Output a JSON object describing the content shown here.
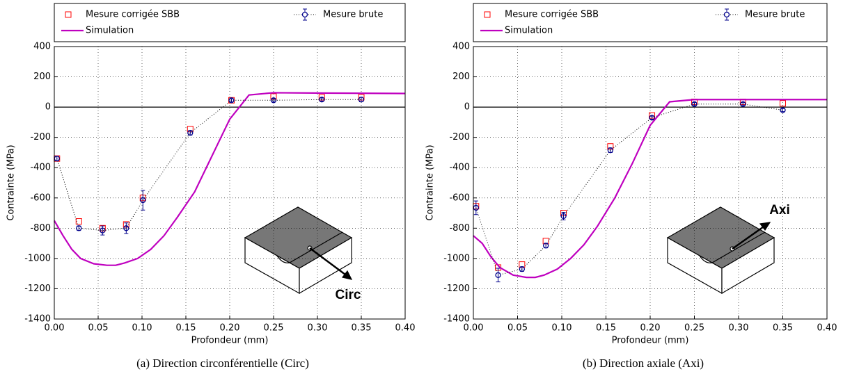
{
  "chart_data": [
    {
      "type": "line",
      "caption": "(a) Direction circonférentielle (Circ)",
      "x_label": "Profondeur (mm)",
      "y_label": "Contrainte (MPa)",
      "annotation": "Circ",
      "xlim": [
        0,
        0.4
      ],
      "ylim": [
        -1400,
        400
      ],
      "grid": true,
      "hline": 0,
      "xticks": [
        {
          "value": 0,
          "label": "0.00"
        },
        0.05,
        {
          "value": 0.1,
          "label": "0.10"
        },
        0.15,
        {
          "value": 0.2,
          "label": "0.20"
        },
        0.25,
        {
          "value": 0.3,
          "label": "0.30"
        },
        0.35,
        {
          "value": 0.4,
          "label": "0.40"
        }
      ],
      "yticks": [
        -1400,
        -1200,
        -1000,
        -800,
        -600,
        -400,
        -200,
        0,
        200,
        400
      ],
      "series": [
        {
          "name": "Mesure corrigée SBB",
          "color": "#ff0000",
          "marker": "square",
          "line": "none",
          "x": [
            0.003,
            0.028,
            0.055,
            0.082,
            0.101,
            0.155,
            0.202,
            0.25,
            0.305,
            0.35
          ],
          "values": [
            -340,
            -755,
            -800,
            -775,
            -600,
            -145,
            45,
            70,
            65,
            65
          ]
        },
        {
          "name": "Simulation",
          "color": "#bf00bf",
          "marker": "none",
          "line": "solid",
          "x": [
            0,
            0.01,
            0.02,
            0.03,
            0.045,
            0.06,
            0.07,
            0.08,
            0.095,
            0.11,
            0.125,
            0.14,
            0.16,
            0.18,
            0.2,
            0.222,
            0.25,
            0.3,
            0.4
          ],
          "values": [
            -750,
            -850,
            -940,
            -1000,
            -1035,
            -1045,
            -1045,
            -1030,
            -1000,
            -940,
            -850,
            -730,
            -560,
            -320,
            -80,
            80,
            95,
            93,
            90
          ]
        },
        {
          "name": "Mesure brute",
          "color": "#00008b",
          "marker": "circle",
          "line": "dotted",
          "x": [
            0.003,
            0.028,
            0.055,
            0.082,
            0.101,
            0.155,
            0.202,
            0.25,
            0.305,
            0.35
          ],
          "values": [
            -340,
            -800,
            -815,
            -800,
            -615,
            -170,
            45,
            45,
            50,
            50
          ],
          "errors": [
            15,
            15,
            30,
            35,
            65,
            15,
            10,
            10,
            10,
            15
          ]
        }
      ]
    },
    {
      "type": "line",
      "caption": "(b) Direction axiale (Axi)",
      "x_label": "Profondeur (mm)",
      "y_label": "Contrainte (MPa)",
      "annotation": "Axi",
      "xlim": [
        0,
        0.4
      ],
      "ylim": [
        -1400,
        400
      ],
      "grid": true,
      "hline": 0,
      "xticks": [
        {
          "value": 0,
          "label": "0.00"
        },
        0.05,
        {
          "value": 0.1,
          "label": "0.10"
        },
        0.15,
        {
          "value": 0.2,
          "label": "0.20"
        },
        0.25,
        {
          "value": 0.3,
          "label": "0.30"
        },
        0.35,
        {
          "value": 0.4,
          "label": "0.40"
        }
      ],
      "yticks": [
        -1400,
        -1200,
        -1000,
        -800,
        -600,
        -400,
        -200,
        0,
        200,
        400
      ],
      "series": [
        {
          "name": "Mesure corrigée SBB",
          "color": "#ff0000",
          "marker": "square",
          "line": "none",
          "x": [
            0.003,
            0.028,
            0.055,
            0.082,
            0.102,
            0.155,
            0.202,
            0.25,
            0.305,
            0.35
          ],
          "values": [
            -655,
            -1060,
            -1040,
            -885,
            -700,
            -260,
            -55,
            35,
            35,
            25
          ]
        },
        {
          "name": "Simulation",
          "color": "#bf00bf",
          "marker": "none",
          "line": "solid",
          "x": [
            0,
            0.01,
            0.02,
            0.03,
            0.045,
            0.06,
            0.07,
            0.08,
            0.095,
            0.11,
            0.125,
            0.14,
            0.16,
            0.18,
            0.2,
            0.222,
            0.25,
            0.3,
            0.4
          ],
          "values": [
            -850,
            -900,
            -990,
            -1060,
            -1110,
            -1125,
            -1125,
            -1110,
            -1070,
            -1000,
            -910,
            -790,
            -600,
            -370,
            -120,
            35,
            50,
            50,
            50
          ]
        },
        {
          "name": "Mesure brute",
          "color": "#00008b",
          "marker": "circle",
          "line": "dotted",
          "x": [
            0.003,
            0.028,
            0.055,
            0.082,
            0.102,
            0.155,
            0.202,
            0.25,
            0.305,
            0.35
          ],
          "values": [
            -665,
            -1110,
            -1070,
            -915,
            -720,
            -285,
            -70,
            20,
            20,
            -20
          ],
          "errors": [
            45,
            45,
            15,
            15,
            25,
            15,
            10,
            10,
            10,
            10
          ]
        }
      ]
    }
  ]
}
